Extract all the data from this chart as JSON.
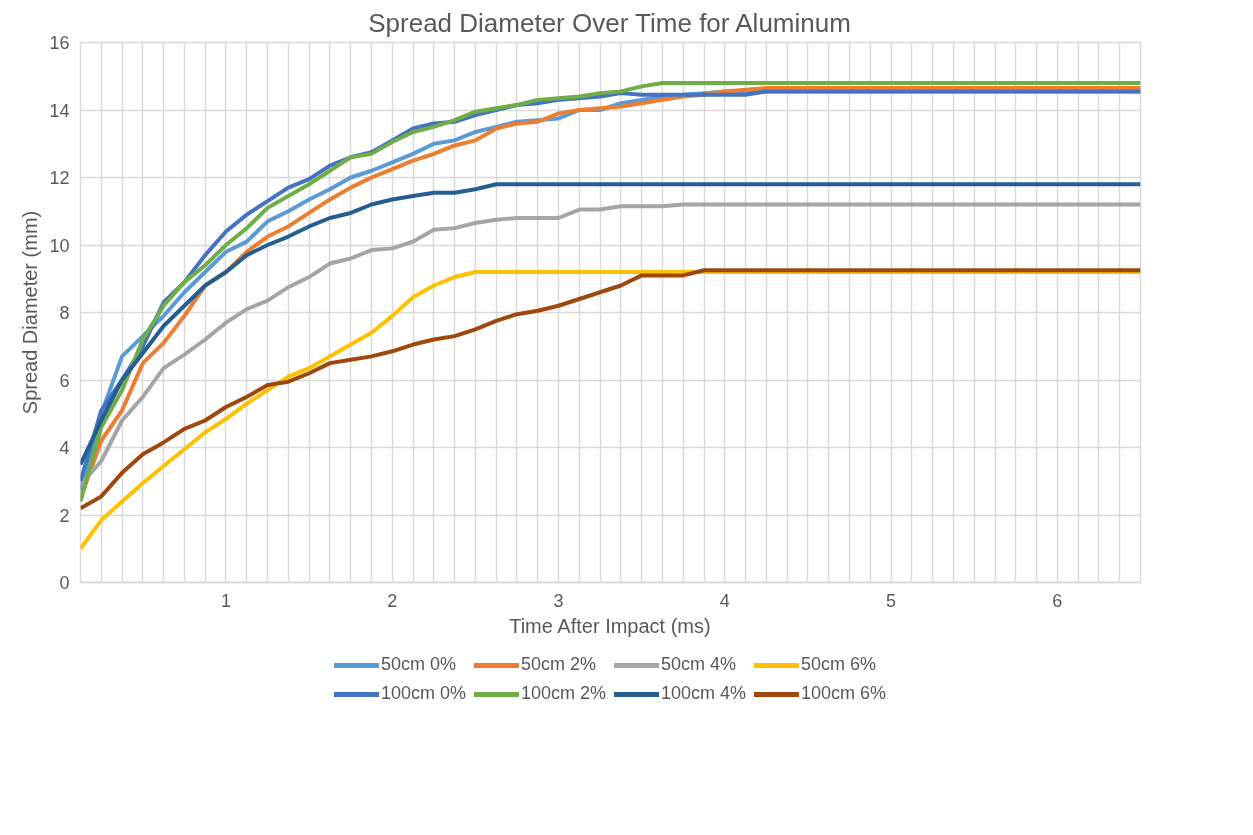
{
  "chart_data": {
    "type": "line",
    "title": "Spread Diameter Over Time for Aluminum",
    "xlabel": "Time After Impact (ms)",
    "ylabel": "Spread Diameter (mm)",
    "xlim": [
      0.125,
      6.5
    ],
    "ylim": [
      0,
      16
    ],
    "yticks": [
      0,
      2,
      4,
      6,
      8,
      10,
      12,
      14,
      16
    ],
    "xticks": [
      {
        "value": 0.25,
        "label": null
      },
      {
        "value": 0.375,
        "label": null
      },
      {
        "value": 0.5,
        "label": null
      },
      {
        "value": 0.625,
        "label": null
      },
      {
        "value": 0.75,
        "label": null
      },
      {
        "value": 0.875,
        "label": null
      },
      1,
      {
        "value": 1.125,
        "label": null
      },
      {
        "value": 1.25,
        "label": null
      },
      {
        "value": 1.375,
        "label": null
      },
      {
        "value": 1.5,
        "label": null
      },
      {
        "value": 1.625,
        "label": null
      },
      {
        "value": 1.75,
        "label": null
      },
      {
        "value": 1.875,
        "label": null
      },
      2,
      {
        "value": 2.125,
        "label": null
      },
      {
        "value": 2.25,
        "label": null
      },
      {
        "value": 2.375,
        "label": null
      },
      {
        "value": 2.5,
        "label": null
      },
      {
        "value": 2.625,
        "label": null
      },
      {
        "value": 2.75,
        "label": null
      },
      {
        "value": 2.875,
        "label": null
      },
      3,
      {
        "value": 3.125,
        "label": null
      },
      {
        "value": 3.25,
        "label": null
      },
      {
        "value": 3.375,
        "label": null
      },
      {
        "value": 3.5,
        "label": null
      },
      {
        "value": 3.625,
        "label": null
      },
      {
        "value": 3.75,
        "label": null
      },
      {
        "value": 3.875,
        "label": null
      },
      4,
      {
        "value": 4.125,
        "label": null
      },
      {
        "value": 4.25,
        "label": null
      },
      {
        "value": 4.375,
        "label": null
      },
      {
        "value": 4.5,
        "label": null
      },
      {
        "value": 4.625,
        "label": null
      },
      {
        "value": 4.75,
        "label": null
      },
      {
        "value": 4.875,
        "label": null
      },
      5,
      {
        "value": 5.125,
        "label": null
      },
      {
        "value": 5.25,
        "label": null
      },
      {
        "value": 5.375,
        "label": null
      },
      {
        "value": 5.5,
        "label": null
      },
      {
        "value": 5.625,
        "label": null
      },
      {
        "value": 5.75,
        "label": null
      },
      {
        "value": 5.875,
        "label": null
      },
      6,
      {
        "value": 6.125,
        "label": null
      },
      {
        "value": 6.25,
        "label": null
      },
      {
        "value": 6.375,
        "label": null
      },
      {
        "value": 6.5,
        "label": null
      }
    ],
    "grid": true,
    "legend": "bottom",
    "marker": "none",
    "line_style": "solid",
    "series": [
      {
        "name": "50cm 0%",
        "color": "#5b9bd5",
        "x": [
          0.125,
          0.25,
          0.375,
          0.5,
          0.625,
          0.75,
          0.875,
          1.0,
          1.125,
          1.25,
          1.375,
          1.5,
          1.625,
          1.75,
          1.875,
          2.0,
          2.125,
          2.25,
          2.375,
          2.5,
          2.625,
          2.75,
          2.875,
          3.0,
          3.125,
          3.25,
          3.375,
          3.5,
          3.625,
          3.75,
          3.875,
          4.0,
          6.5
        ],
        "values": [
          2.7,
          5.0,
          6.7,
          7.3,
          7.9,
          8.6,
          9.2,
          9.8,
          10.1,
          10.7,
          11.0,
          11.35,
          11.65,
          12.0,
          12.2,
          12.45,
          12.7,
          13.0,
          13.1,
          13.35,
          13.5,
          13.65,
          13.7,
          13.75,
          14.0,
          14.0,
          14.2,
          14.3,
          14.4,
          14.45,
          14.5,
          14.55,
          14.55
        ]
      },
      {
        "name": "50cm 2%",
        "color": "#ed7d31",
        "x": [
          0.125,
          0.25,
          0.375,
          0.5,
          0.625,
          0.75,
          0.875,
          1.0,
          1.125,
          1.25,
          1.375,
          1.5,
          1.625,
          1.75,
          1.875,
          2.0,
          2.125,
          2.25,
          2.375,
          2.5,
          2.625,
          2.75,
          2.875,
          3.0,
          3.125,
          3.25,
          3.375,
          3.5,
          3.625,
          3.75,
          3.875,
          4.0,
          4.125,
          4.25,
          6.5
        ],
        "values": [
          2.5,
          4.2,
          5.1,
          6.5,
          7.1,
          7.9,
          8.8,
          9.2,
          9.8,
          10.25,
          10.55,
          10.95,
          11.35,
          11.7,
          12.0,
          12.25,
          12.5,
          12.7,
          12.95,
          13.1,
          13.45,
          13.6,
          13.65,
          13.9,
          14.0,
          14.05,
          14.1,
          14.2,
          14.3,
          14.4,
          14.45,
          14.55,
          14.6,
          14.65,
          14.65
        ]
      },
      {
        "name": "50cm 4%",
        "color": "#a5a5a5",
        "x": [
          0.125,
          0.25,
          0.375,
          0.5,
          0.625,
          0.75,
          0.875,
          1.0,
          1.125,
          1.25,
          1.375,
          1.5,
          1.625,
          1.75,
          1.875,
          2.0,
          2.125,
          2.25,
          2.375,
          2.5,
          2.625,
          2.75,
          2.875,
          3.0,
          3.125,
          3.25,
          3.375,
          3.5,
          3.625,
          3.75,
          6.5
        ],
        "values": [
          2.9,
          3.6,
          4.8,
          5.5,
          6.35,
          6.75,
          7.2,
          7.7,
          8.1,
          8.35,
          8.75,
          9.05,
          9.45,
          9.6,
          9.85,
          9.9,
          10.1,
          10.45,
          10.5,
          10.65,
          10.75,
          10.8,
          10.8,
          10.8,
          11.05,
          11.05,
          11.15,
          11.15,
          11.15,
          11.2,
          11.2
        ]
      },
      {
        "name": "50cm 6%",
        "color": "#ffc000",
        "x": [
          0.125,
          0.25,
          0.375,
          0.5,
          0.625,
          0.75,
          0.875,
          1.0,
          1.125,
          1.25,
          1.375,
          1.5,
          1.625,
          1.75,
          1.875,
          2.0,
          2.125,
          2.25,
          2.375,
          2.5,
          6.5
        ],
        "values": [
          1.0,
          1.85,
          2.4,
          2.95,
          3.45,
          3.95,
          4.45,
          4.85,
          5.3,
          5.7,
          6.1,
          6.35,
          6.7,
          7.05,
          7.4,
          7.9,
          8.45,
          8.8,
          9.05,
          9.2,
          9.2
        ]
      },
      {
        "name": "100cm 0%",
        "color": "#4472c4",
        "x": [
          0.125,
          0.25,
          0.375,
          0.5,
          0.625,
          0.75,
          0.875,
          1.0,
          1.125,
          1.25,
          1.375,
          1.5,
          1.625,
          1.75,
          1.875,
          2.0,
          2.125,
          2.25,
          2.375,
          2.5,
          2.625,
          2.75,
          2.875,
          3.0,
          3.125,
          3.25,
          3.375,
          3.5,
          4.125,
          4.25,
          6.5
        ],
        "values": [
          3.0,
          5.1,
          6.0,
          7.0,
          8.3,
          8.9,
          9.7,
          10.4,
          10.9,
          11.3,
          11.7,
          11.95,
          12.35,
          12.6,
          12.75,
          13.1,
          13.45,
          13.6,
          13.65,
          13.85,
          14.0,
          14.15,
          14.2,
          14.3,
          14.35,
          14.4,
          14.5,
          14.45,
          14.45,
          14.55,
          14.55
        ]
      },
      {
        "name": "100cm 2%",
        "color": "#70ad47",
        "x": [
          0.125,
          0.25,
          0.375,
          0.5,
          0.625,
          0.75,
          0.875,
          1.0,
          1.125,
          1.25,
          1.375,
          1.5,
          1.625,
          1.75,
          1.875,
          2.0,
          2.125,
          2.25,
          2.375,
          2.5,
          2.625,
          2.75,
          2.875,
          3.0,
          3.125,
          3.25,
          3.375,
          3.5,
          3.625,
          6.5
        ],
        "values": [
          2.4,
          4.6,
          5.7,
          7.2,
          8.2,
          8.9,
          9.4,
          10.0,
          10.5,
          11.1,
          11.45,
          11.8,
          12.2,
          12.6,
          12.7,
          13.05,
          13.35,
          13.5,
          13.7,
          13.95,
          14.05,
          14.15,
          14.3,
          14.35,
          14.4,
          14.5,
          14.55,
          14.7,
          14.8,
          14.8
        ]
      },
      {
        "name": "100cm 4%",
        "color": "#255e91",
        "x": [
          0.125,
          0.25,
          0.375,
          0.5,
          0.625,
          0.75,
          0.875,
          1.0,
          1.125,
          1.25,
          1.375,
          1.5,
          1.625,
          1.75,
          1.875,
          2.0,
          2.125,
          2.25,
          2.375,
          2.5,
          2.625,
          6.5
        ],
        "values": [
          3.5,
          4.8,
          6.0,
          6.8,
          7.6,
          8.2,
          8.8,
          9.2,
          9.7,
          10.0,
          10.25,
          10.55,
          10.8,
          10.95,
          11.2,
          11.35,
          11.45,
          11.55,
          11.55,
          11.65,
          11.8,
          11.8
        ]
      },
      {
        "name": "100cm 6%",
        "color": "#9e480e",
        "x": [
          0.125,
          0.25,
          0.375,
          0.5,
          0.625,
          0.75,
          0.875,
          1.0,
          1.125,
          1.25,
          1.375,
          1.5,
          1.625,
          1.75,
          1.875,
          2.0,
          2.125,
          2.25,
          2.375,
          2.5,
          2.625,
          2.75,
          2.875,
          3.0,
          3.125,
          3.25,
          3.375,
          3.5,
          3.625,
          3.75,
          3.875,
          6.5
        ],
        "values": [
          2.2,
          2.55,
          3.25,
          3.8,
          4.15,
          4.55,
          4.8,
          5.2,
          5.5,
          5.85,
          5.95,
          6.2,
          6.5,
          6.6,
          6.7,
          6.85,
          7.05,
          7.2,
          7.3,
          7.5,
          7.75,
          7.95,
          8.05,
          8.2,
          8.4,
          8.6,
          8.8,
          9.1,
          9.1,
          9.1,
          9.25,
          9.25
        ]
      }
    ]
  }
}
